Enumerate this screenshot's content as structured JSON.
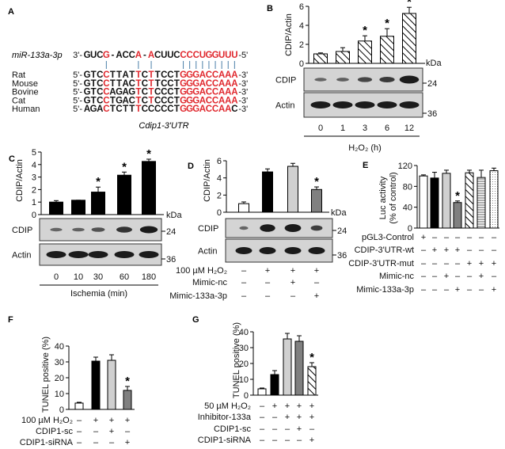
{
  "panel_labels": {
    "A": "A",
    "B": "B",
    "C": "C",
    "D": "D",
    "E": "E",
    "F": "F",
    "G": "G"
  },
  "alignment": {
    "mirna": {
      "name": "miR-133a-3p",
      "prefix": "3'-",
      "suffix": "-5'",
      "seq": "GUCG-ACCA-ACUUCCCCUGGUUU",
      "red": [
        4,
        9,
        11,
        16,
        17,
        18,
        19,
        20,
        21,
        22,
        23,
        24
      ]
    },
    "pair_positions": [
      4,
      9,
      11,
      16,
      17,
      18,
      19,
      20,
      21,
      22,
      23,
      24
    ],
    "rows": [
      {
        "species": "Rat",
        "prefix": "5'-",
        "suffix": "-3'",
        "seq": "GTCCTTATTCTTCCTGGGACCAAA",
        "red": [
          4,
          9,
          11,
          16,
          17,
          18,
          19,
          20,
          21,
          22,
          23,
          24
        ]
      },
      {
        "species": "Mouse",
        "prefix": "5'-",
        "suffix": "-3'",
        "seq": "GTCCTTACTCTTCCTGGGACCAAA",
        "red": [
          4,
          9,
          11,
          16,
          17,
          18,
          19,
          20,
          21,
          22,
          23,
          24
        ]
      },
      {
        "species": "Bovine",
        "prefix": "5'-",
        "suffix": "-3'",
        "seq": "GTCCAGAGTCTCCCTGGGACCAAA",
        "red": [
          4,
          9,
          11,
          16,
          17,
          18,
          19,
          20,
          21,
          22,
          23,
          24
        ]
      },
      {
        "species": "Cat",
        "prefix": "5'-",
        "suffix": "-3'",
        "seq": "GTCCTGACTCTCCCTGGGACCAAA",
        "red": [
          4,
          9,
          11,
          16,
          17,
          18,
          19,
          20,
          21,
          22,
          23,
          24
        ]
      },
      {
        "species": "Human",
        "prefix": "5'-",
        "suffix": "-3'",
        "seq": "AGACTCTTTCCCCCTGGGACCAAC",
        "red": [
          4,
          9,
          16,
          17,
          18,
          19,
          20,
          21,
          22,
          23
        ]
      }
    ],
    "caption": "Cdip1-3'UTR",
    "colors": {
      "match": "#e0282e",
      "base": "#111111",
      "pair": "#4a7fa8"
    }
  },
  "chart_data": [
    {
      "id": "B",
      "type": "bar",
      "ylabel": "CDIP/Actin",
      "ylim": [
        0,
        6
      ],
      "yticks": [
        "0",
        "2",
        "4",
        "6"
      ],
      "categories": [
        "0",
        "1",
        "3",
        "6",
        "12"
      ],
      "values": [
        1.0,
        1.25,
        2.35,
        2.85,
        5.25
      ],
      "errors": [
        0.1,
        0.4,
        0.55,
        0.8,
        0.65
      ],
      "significant": [
        false,
        false,
        true,
        true,
        true
      ],
      "fills": [
        "hatch",
        "hatch",
        "hatch",
        "hatch",
        "hatch"
      ],
      "xlabel": "H₂O₂ (h)",
      "kda": "kDa",
      "blots": [
        "CDIP",
        "Actin"
      ],
      "markers": [
        "24",
        "36"
      ],
      "star": "*"
    },
    {
      "id": "C",
      "type": "bar",
      "ylabel": "CDIP/Actin",
      "ylim": [
        0,
        5
      ],
      "yticks": [
        "0",
        "1",
        "2",
        "3",
        "4",
        "5"
      ],
      "categories": [
        "0",
        "10",
        "30",
        "60",
        "180"
      ],
      "values": [
        1.0,
        1.15,
        1.8,
        3.15,
        4.25
      ],
      "errors": [
        0.12,
        0.0,
        0.4,
        0.25,
        0.18
      ],
      "significant": [
        false,
        false,
        true,
        true,
        true
      ],
      "fills": [
        "#000000",
        "#000000",
        "#000000",
        "#000000",
        "#000000"
      ],
      "xlabel": "Ischemia (min)",
      "kda": "kDa",
      "blots": [
        "CDIP",
        "Actin"
      ],
      "markers": [
        "24",
        "36"
      ],
      "star": "*"
    },
    {
      "id": "D",
      "type": "bar",
      "ylabel": "CDIP/Actin",
      "ylim": [
        0,
        6
      ],
      "yticks": [
        "0",
        "2",
        "4",
        "6"
      ],
      "values": [
        1.0,
        4.7,
        5.35,
        2.65
      ],
      "errors": [
        0.2,
        0.35,
        0.35,
        0.3
      ],
      "significant": [
        false,
        false,
        false,
        true
      ],
      "fills": [
        "#ffffff",
        "#000000",
        "#d0d0d0",
        "#808080"
      ],
      "kda": "kDa",
      "blots": [
        "CDIP",
        "Actin"
      ],
      "markers": [
        "24",
        "36"
      ],
      "star": "*",
      "conditions": [
        {
          "label": "100 µM H₂O₂",
          "signs": [
            "–",
            "+",
            "+",
            "+"
          ]
        },
        {
          "label": "Mimic-nc",
          "signs": [
            "–",
            "–",
            "+",
            "–"
          ]
        },
        {
          "label": "Mimic-133a-3p",
          "signs": [
            "–",
            "–",
            "–",
            "+"
          ]
        }
      ]
    },
    {
      "id": "E",
      "type": "bar",
      "ylabel": "Luc activity",
      "ylabel2": "(% of control)",
      "ylim": [
        0,
        120
      ],
      "yticks": [
        "0",
        "40",
        "80",
        "120"
      ],
      "values": [
        100,
        96,
        105,
        49,
        106,
        97,
        110
      ],
      "errors": [
        2,
        11,
        6,
        3,
        5,
        14,
        5
      ],
      "significant": [
        false,
        false,
        false,
        true,
        false,
        false,
        false
      ],
      "fills": [
        "#ffffff",
        "#000000",
        "#d0d0d0",
        "#808080",
        "hatch",
        "hlines",
        "dots"
      ],
      "star": "*",
      "conditions": [
        {
          "label": "pGL3-Control",
          "signs": [
            "+",
            "–",
            "–",
            "–",
            "–",
            "–",
            "–"
          ]
        },
        {
          "label": "CDIP-3'UTR-wt",
          "signs": [
            "–",
            "+",
            "+",
            "+",
            "–",
            "–",
            "–"
          ]
        },
        {
          "label": "CDIP-3'UTR-mut",
          "signs": [
            "–",
            "–",
            "–",
            "–",
            "+",
            "+",
            "+"
          ]
        },
        {
          "label": "Mimic-nc",
          "signs": [
            "–",
            "–",
            "+",
            "–",
            "–",
            "+",
            "–"
          ]
        },
        {
          "label": "Mimic-133a-3p",
          "signs": [
            "–",
            "–",
            "–",
            "+",
            "–",
            "–",
            "+"
          ]
        }
      ]
    },
    {
      "id": "F",
      "type": "bar",
      "ylabel": "TUNEL positive (%)",
      "ylim": [
        0,
        40
      ],
      "yticks": [
        "0",
        "10",
        "20",
        "30",
        "40"
      ],
      "values": [
        4,
        30.5,
        31,
        12
      ],
      "errors": [
        0.5,
        2.5,
        3.5,
        2.5
      ],
      "significant": [
        false,
        false,
        false,
        true
      ],
      "fills": [
        "#ffffff",
        "#000000",
        "#d0d0d0",
        "#808080"
      ],
      "star": "*",
      "conditions": [
        {
          "label": "100 µM H₂O₂",
          "signs": [
            "–",
            "+",
            "+",
            "+"
          ]
        },
        {
          "label": "CDIP1-sc",
          "signs": [
            "–",
            "–",
            "+",
            "–"
          ]
        },
        {
          "label": "CDIP1-siRNA",
          "signs": [
            "–",
            "–",
            "–",
            "+"
          ]
        }
      ]
    },
    {
      "id": "G",
      "type": "bar",
      "ylabel": "TUNEL positive (%)",
      "ylim": [
        0,
        40
      ],
      "yticks": [
        "0",
        "10",
        "20",
        "30",
        "40"
      ],
      "values": [
        4,
        13,
        35.5,
        34,
        18
      ],
      "errors": [
        0.5,
        2.5,
        3.5,
        3.5,
        2.5
      ],
      "significant": [
        false,
        false,
        false,
        false,
        true
      ],
      "fills": [
        "#ffffff",
        "#000000",
        "#d0d0d0",
        "#808080",
        "hatch"
      ],
      "star": "*",
      "conditions": [
        {
          "label": "50 µM H₂O₂",
          "signs": [
            "–",
            "+",
            "+",
            "+",
            "+"
          ]
        },
        {
          "label": "Inhibitor-133a",
          "signs": [
            "–",
            "–",
            "+",
            "+",
            "+"
          ]
        },
        {
          "label": "CDIP1-sc",
          "signs": [
            "–",
            "–",
            "–",
            "+",
            "–"
          ]
        },
        {
          "label": "CDIP1-siRNA",
          "signs": [
            "–",
            "–",
            "–",
            "–",
            "+"
          ]
        }
      ]
    }
  ]
}
